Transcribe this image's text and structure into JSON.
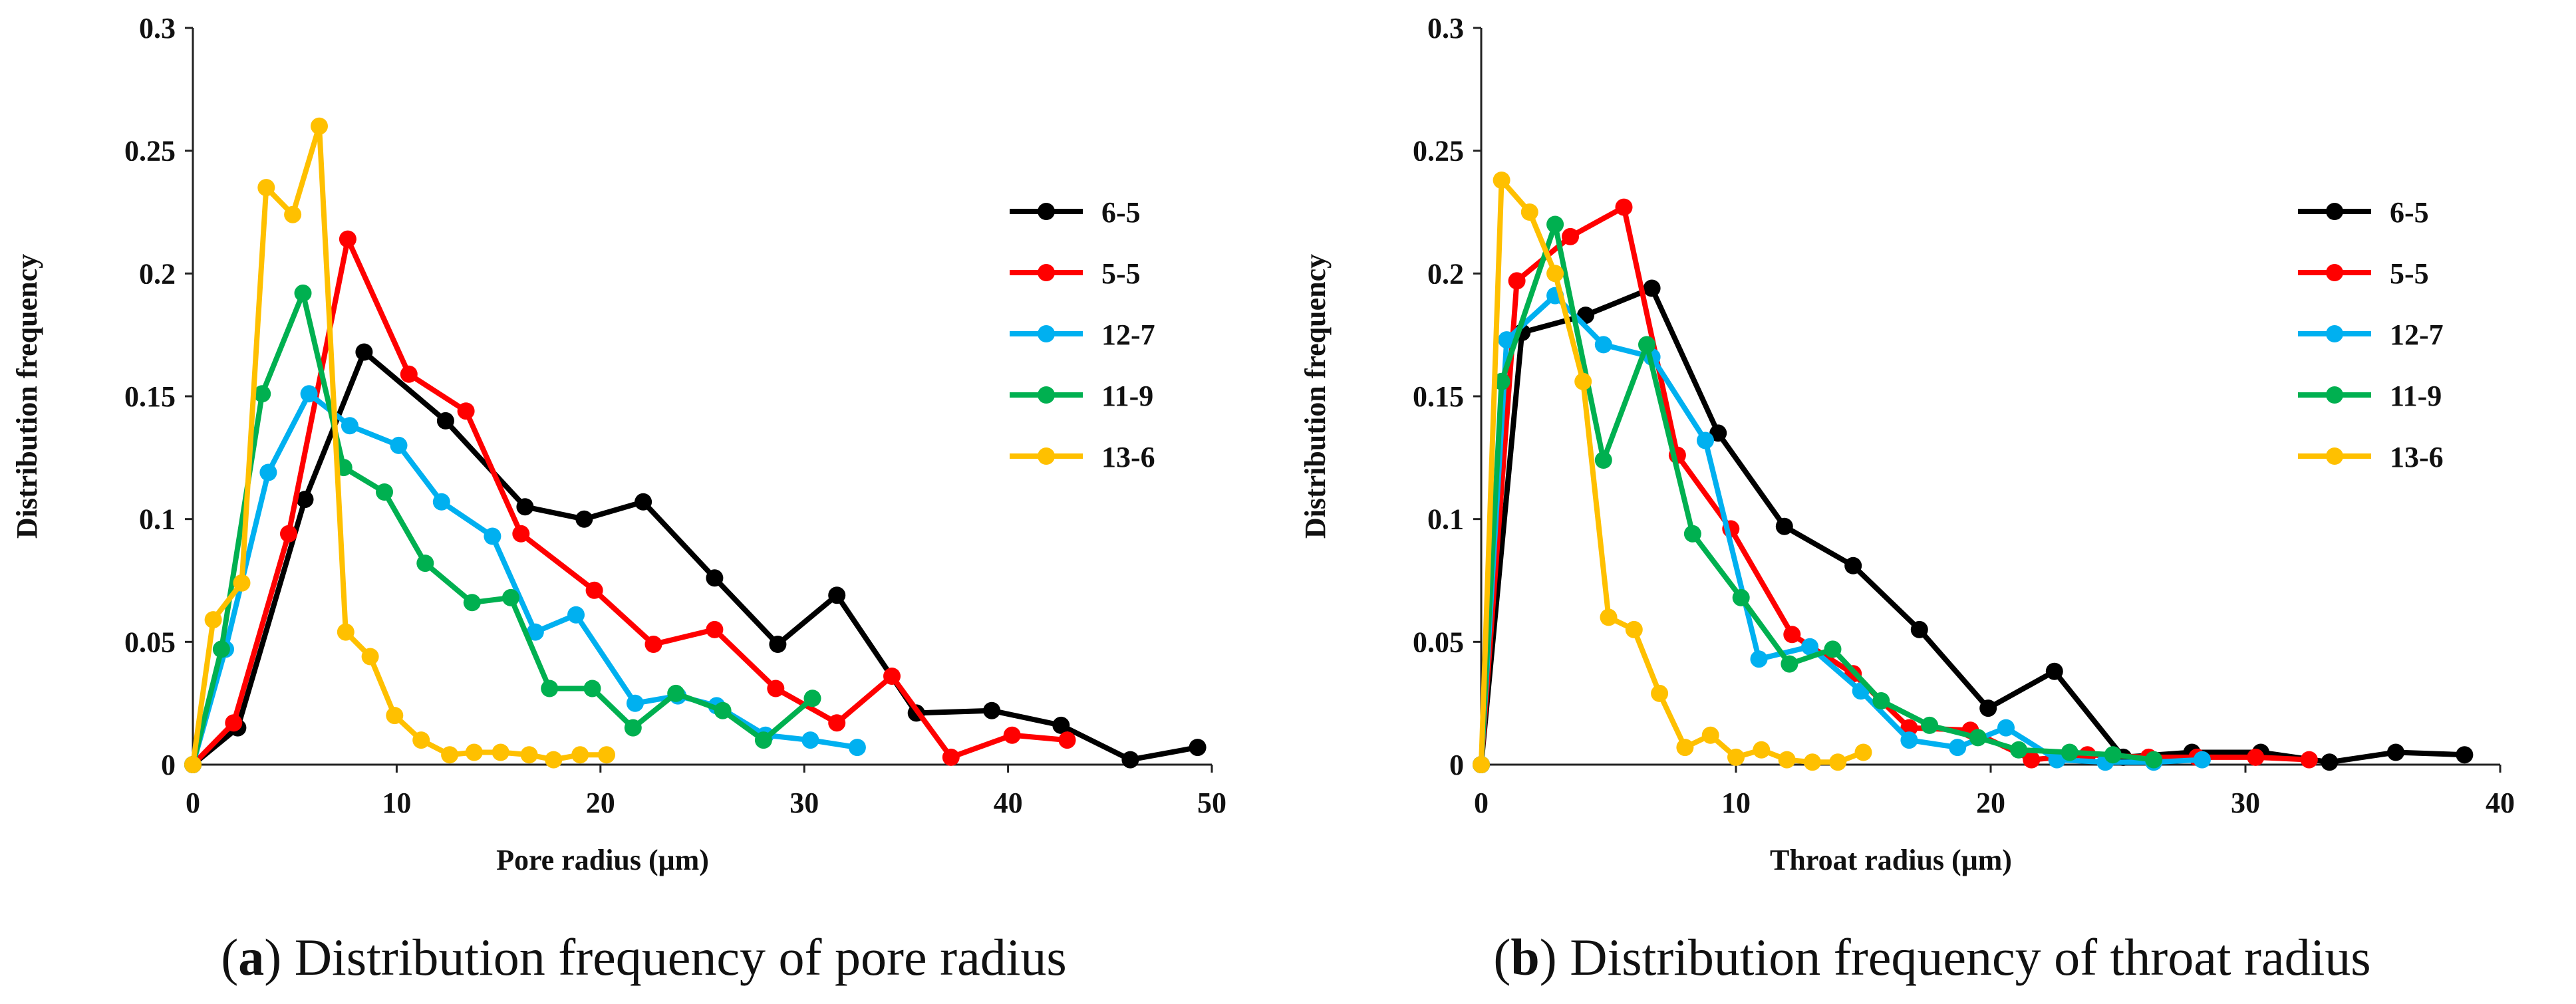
{
  "chart_data": [
    {
      "type": "line",
      "panel_label": "a",
      "caption": "Distribution frequency of pore radius",
      "xlabel": "Pore radius (μm)",
      "ylabel": "Distribution  frequency",
      "xlim": [
        0,
        50
      ],
      "ylim": [
        0,
        0.3
      ],
      "xticks": [
        "0",
        "10",
        "20",
        "30",
        "40",
        "50"
      ],
      "yticks": [
        "0",
        "0.05",
        "0.1",
        "0.15",
        "0.2",
        "0.25",
        "0.3"
      ],
      "legend_position": "right",
      "series": [
        {
          "name": "6-5",
          "color": "#000000",
          "points": [
            [
              0,
              0
            ],
            [
              2.2,
              0.015
            ],
            [
              5.5,
              0.108
            ],
            [
              8.4,
              0.168
            ],
            [
              12.4,
              0.14
            ],
            [
              16.3,
              0.105
            ],
            [
              19.2,
              0.1
            ],
            [
              22.1,
              0.107
            ],
            [
              25.6,
              0.076
            ],
            [
              28.7,
              0.049
            ],
            [
              31.6,
              0.069
            ],
            [
              35.5,
              0.021
            ],
            [
              39.2,
              0.022
            ],
            [
              42.6,
              0.016
            ],
            [
              46,
              0.002
            ],
            [
              49.3,
              0.007
            ]
          ]
        },
        {
          "name": "5-5",
          "color": "#ff0000",
          "points": [
            [
              0,
              0
            ],
            [
              2,
              0.017
            ],
            [
              4.7,
              0.094
            ],
            [
              7.6,
              0.214
            ],
            [
              10.6,
              0.159
            ],
            [
              13.4,
              0.144
            ],
            [
              16.1,
              0.094
            ],
            [
              19.7,
              0.071
            ],
            [
              22.6,
              0.049
            ],
            [
              25.6,
              0.055
            ],
            [
              28.6,
              0.031
            ],
            [
              31.6,
              0.017
            ],
            [
              34.3,
              0.036
            ],
            [
              37.2,
              0.003
            ],
            [
              40.2,
              0.012
            ],
            [
              42.9,
              0.01
            ]
          ]
        },
        {
          "name": "12-7",
          "color": "#00b0f0",
          "points": [
            [
              0,
              0
            ],
            [
              1.6,
              0.047
            ],
            [
              3.7,
              0.119
            ],
            [
              5.7,
              0.151
            ],
            [
              7.7,
              0.138
            ],
            [
              10.1,
              0.13
            ],
            [
              12.2,
              0.107
            ],
            [
              14.7,
              0.093
            ],
            [
              16.8,
              0.054
            ],
            [
              18.8,
              0.061
            ],
            [
              21.7,
              0.025
            ],
            [
              23.8,
              0.028
            ],
            [
              25.7,
              0.024
            ],
            [
              28.1,
              0.012
            ],
            [
              30.3,
              0.01
            ],
            [
              32.6,
              0.007
            ]
          ]
        },
        {
          "name": "11-9",
          "color": "#00b050",
          "points": [
            [
              0,
              0
            ],
            [
              1.4,
              0.047
            ],
            [
              3.4,
              0.151
            ],
            [
              5.4,
              0.192
            ],
            [
              7.4,
              0.121
            ],
            [
              9.4,
              0.111
            ],
            [
              11.4,
              0.082
            ],
            [
              13.7,
              0.066
            ],
            [
              15.6,
              0.068
            ],
            [
              17.5,
              0.031
            ],
            [
              19.6,
              0.031
            ],
            [
              21.6,
              0.015
            ],
            [
              23.7,
              0.029
            ],
            [
              26,
              0.022
            ],
            [
              28,
              0.01
            ],
            [
              30.4,
              0.027
            ]
          ]
        },
        {
          "name": "13-6",
          "color": "#ffc000",
          "points": [
            [
              0,
              0
            ],
            [
              1,
              0.059
            ],
            [
              2.4,
              0.074
            ],
            [
              3.6,
              0.235
            ],
            [
              4.9,
              0.224
            ],
            [
              6.2,
              0.26
            ],
            [
              7.5,
              0.054
            ],
            [
              8.7,
              0.044
            ],
            [
              9.9,
              0.02
            ],
            [
              11.2,
              0.01
            ],
            [
              12.6,
              0.004
            ],
            [
              13.8,
              0.005
            ],
            [
              15.1,
              0.005
            ],
            [
              16.5,
              0.004
            ],
            [
              17.7,
              0.002
            ],
            [
              19,
              0.004
            ],
            [
              20.3,
              0.004
            ]
          ]
        }
      ]
    },
    {
      "type": "line",
      "panel_label": "b",
      "caption": "Distribution frequency of throat radius",
      "xlabel": "Throat radius (μm)",
      "ylabel": "Distribution  frequency",
      "xlim": [
        0,
        40
      ],
      "ylim": [
        0,
        0.3
      ],
      "xticks": [
        "0",
        "10",
        "20",
        "30",
        "40"
      ],
      "yticks": [
        "0",
        "0.05",
        "0.1",
        "0.15",
        "0.2",
        "0.25",
        "0.3"
      ],
      "legend_position": "right",
      "series": [
        {
          "name": "6-5",
          "color": "#000000",
          "points": [
            [
              0,
              0
            ],
            [
              1.6,
              0.176
            ],
            [
              4.1,
              0.183
            ],
            [
              6.7,
              0.194
            ],
            [
              9.3,
              0.135
            ],
            [
              11.9,
              0.097
            ],
            [
              14.6,
              0.081
            ],
            [
              17.2,
              0.055
            ],
            [
              19.9,
              0.023
            ],
            [
              22.5,
              0.038
            ],
            [
              25.2,
              0.003
            ],
            [
              27.9,
              0.005
            ],
            [
              30.6,
              0.005
            ],
            [
              33.3,
              0.001
            ],
            [
              35.9,
              0.005
            ],
            [
              38.6,
              0.004
            ]
          ]
        },
        {
          "name": "5-5",
          "color": "#ff0000",
          "points": [
            [
              0,
              0
            ],
            [
              1.4,
              0.197
            ],
            [
              3.5,
              0.215
            ],
            [
              5.6,
              0.227
            ],
            [
              7.7,
              0.126
            ],
            [
              9.8,
              0.096
            ],
            [
              12.2,
              0.053
            ],
            [
              14.6,
              0.037
            ],
            [
              16.8,
              0.015
            ],
            [
              19.2,
              0.014
            ],
            [
              21.6,
              0.002
            ],
            [
              23.8,
              0.004
            ],
            [
              26.2,
              0.003
            ],
            [
              28.1,
              0.003
            ],
            [
              30.4,
              0.003
            ],
            [
              32.5,
              0.002
            ]
          ]
        },
        {
          "name": "12-7",
          "color": "#00b0f0",
          "points": [
            [
              0,
              0
            ],
            [
              1,
              0.173
            ],
            [
              2.9,
              0.191
            ],
            [
              4.8,
              0.171
            ],
            [
              6.7,
              0.166
            ],
            [
              8.8,
              0.132
            ],
            [
              10.9,
              0.043
            ],
            [
              12.9,
              0.048
            ],
            [
              14.9,
              0.03
            ],
            [
              16.8,
              0.01
            ],
            [
              18.7,
              0.007
            ],
            [
              20.6,
              0.015
            ],
            [
              22.6,
              0.002
            ],
            [
              24.5,
              0.001
            ],
            [
              26.4,
              0.001
            ],
            [
              28.3,
              0.002
            ]
          ]
        },
        {
          "name": "11-9",
          "color": "#00b050",
          "points": [
            [
              0,
              0
            ],
            [
              0.8,
              0.156
            ],
            [
              2.9,
              0.22
            ],
            [
              4.8,
              0.124
            ],
            [
              6.5,
              0.171
            ],
            [
              8.3,
              0.094
            ],
            [
              10.2,
              0.068
            ],
            [
              12.1,
              0.041
            ],
            [
              13.8,
              0.047
            ],
            [
              15.7,
              0.026
            ],
            [
              17.6,
              0.016
            ],
            [
              19.5,
              0.011
            ],
            [
              21.1,
              0.006
            ],
            [
              23.1,
              0.005
            ],
            [
              24.8,
              0.004
            ],
            [
              26.4,
              0.002
            ]
          ]
        },
        {
          "name": "13-6",
          "color": "#ffc000",
          "points": [
            [
              0,
              0
            ],
            [
              0.8,
              0.238
            ],
            [
              1.9,
              0.225
            ],
            [
              2.9,
              0.2
            ],
            [
              4,
              0.156
            ],
            [
              5,
              0.06
            ],
            [
              6,
              0.055
            ],
            [
              7,
              0.029
            ],
            [
              8,
              0.007
            ],
            [
              9,
              0.012
            ],
            [
              10,
              0.003
            ],
            [
              11,
              0.006
            ],
            [
              12,
              0.002
            ],
            [
              13,
              0.001
            ],
            [
              14,
              0.001
            ],
            [
              15,
              0.005
            ]
          ]
        }
      ]
    }
  ]
}
